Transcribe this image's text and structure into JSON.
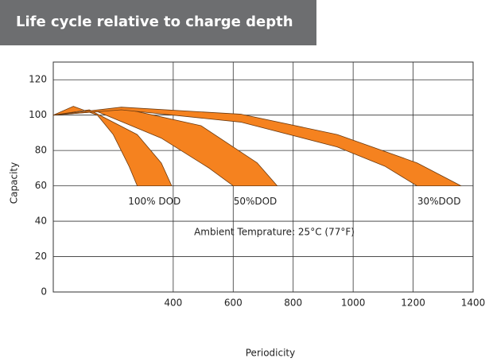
{
  "chart_data": {
    "type": "band",
    "title": "Life cycle relative to charge depth",
    "x_label": "Periodicity",
    "y_label": "Capacity",
    "annotation": "Ambient Temprature: 25°C (77°F)",
    "xlim": [
      0,
      1400
    ],
    "ylim": [
      0,
      130
    ],
    "xticks": [
      400,
      600,
      800,
      1000,
      1200,
      1400
    ],
    "yticks": [
      0,
      20,
      40,
      60,
      80,
      100,
      120
    ],
    "grid": true,
    "series": [
      {
        "name": "100% DOD",
        "color": "#f5821f",
        "upper": {
          "x": [
            0,
            120,
            280,
            360,
            395
          ],
          "y": [
            100,
            103,
            89,
            73,
            60
          ]
        },
        "lower": {
          "x": [
            0,
            67,
            147,
            200,
            253,
            280
          ],
          "y": [
            100,
            105,
            100,
            89,
            71,
            60
          ]
        }
      },
      {
        "name": "50%DOD",
        "color": "#f5821f",
        "upper": {
          "x": [
            0,
            227,
            493,
            680,
            747
          ],
          "y": [
            100,
            104,
            94,
            73,
            60
          ]
        },
        "lower": {
          "x": [
            0,
            147,
            360,
            520,
            600
          ],
          "y": [
            100,
            102,
            87,
            70,
            60
          ]
        }
      },
      {
        "name": "30%DOD",
        "color": "#f5821f",
        "upper": {
          "x": [
            0,
            227,
            627,
            947,
            1213,
            1360
          ],
          "y": [
            100,
            104.5,
            100.5,
            89,
            73,
            60
          ]
        },
        "lower": {
          "x": [
            0,
            227,
            627,
            947,
            1107,
            1213
          ],
          "y": [
            100,
            103,
            96,
            82,
            71,
            60
          ]
        }
      }
    ]
  }
}
